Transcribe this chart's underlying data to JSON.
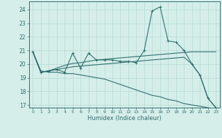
{
  "x": [
    0,
    1,
    2,
    3,
    4,
    5,
    6,
    7,
    8,
    9,
    10,
    11,
    12,
    13,
    14,
    15,
    16,
    17,
    18,
    19,
    20,
    21,
    22,
    23
  ],
  "line_jagged": [
    20.9,
    19.4,
    19.5,
    19.6,
    19.4,
    20.8,
    19.7,
    20.8,
    20.3,
    20.3,
    20.3,
    20.2,
    20.2,
    20.1,
    21.0,
    23.9,
    24.2,
    21.7,
    21.6,
    21.0,
    20.0,
    19.2,
    17.5,
    16.8
  ],
  "line_upper": [
    20.9,
    19.4,
    19.5,
    19.7,
    19.9,
    20.05,
    20.1,
    20.2,
    20.3,
    20.35,
    20.4,
    20.45,
    20.5,
    20.55,
    20.6,
    20.65,
    20.7,
    20.75,
    20.8,
    20.85,
    20.9,
    20.9,
    20.9,
    20.9
  ],
  "line_mid": [
    20.9,
    19.4,
    19.5,
    19.6,
    19.7,
    19.8,
    19.85,
    19.9,
    19.95,
    20.0,
    20.05,
    20.1,
    20.15,
    20.2,
    20.25,
    20.3,
    20.35,
    20.4,
    20.45,
    20.5,
    20.0,
    19.2,
    17.5,
    16.8
  ],
  "line_declining": [
    20.9,
    19.5,
    19.4,
    19.4,
    19.3,
    19.3,
    19.2,
    19.1,
    19.0,
    18.9,
    18.7,
    18.5,
    18.3,
    18.1,
    17.9,
    17.7,
    17.6,
    17.4,
    17.3,
    17.1,
    17.0,
    16.9,
    16.8,
    16.7
  ],
  "color": "#2e6b6b",
  "bg_color": "#d5eeea",
  "grid_color": "#b5d9d3",
  "xlabel": "Humidex (Indice chaleur)",
  "ylim": [
    16.8,
    24.6
  ],
  "xlim": [
    -0.5,
    23.5
  ],
  "yticks": [
    17,
    18,
    19,
    20,
    21,
    22,
    23,
    24
  ],
  "xticks": [
    0,
    1,
    2,
    3,
    4,
    5,
    6,
    7,
    8,
    9,
    10,
    11,
    12,
    13,
    14,
    15,
    16,
    17,
    18,
    19,
    20,
    21,
    22,
    23
  ]
}
